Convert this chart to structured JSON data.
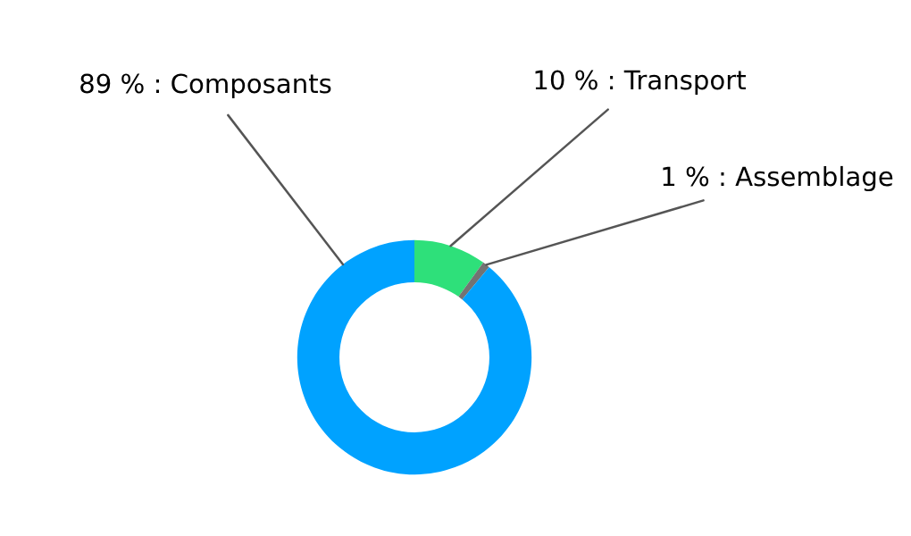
{
  "chart_data": {
    "type": "donut",
    "categories": [
      "Transport",
      "Assemblage",
      "Composants"
    ],
    "values": [
      10,
      1,
      89
    ],
    "value_labels": [
      "10 %",
      "1 %",
      "89 %"
    ],
    "colors": [
      "#2ee07a",
      "#737373",
      "#00a2ff"
    ],
    "legend": false
  }
}
